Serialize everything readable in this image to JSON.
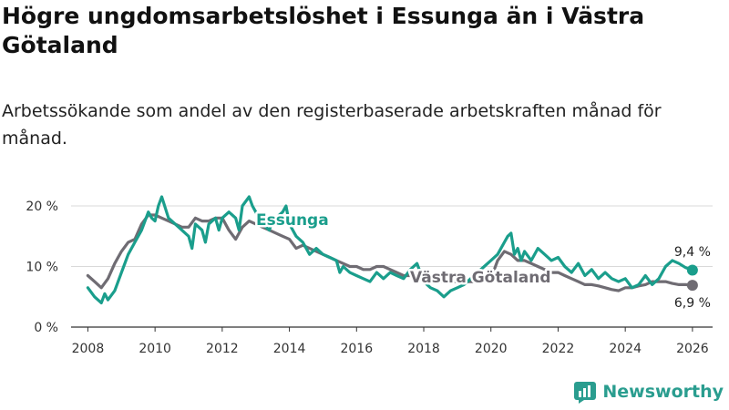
{
  "title": "Högre ungdomsarbetslöshet i Essunga än i Västra Götaland",
  "subtitle": "Arbetssökande som andel av den registerbaserade arbetskraften månad för månad.",
  "brand": {
    "name": "Newsworthy"
  },
  "colors": {
    "essunga": "#1a9e8c",
    "vg": "#6f6c73",
    "grid": "#d9d9d9",
    "axis": "#333333"
  },
  "chart_data": {
    "type": "line",
    "title": "Högre ungdomsarbetslöshet i Essunga än i Västra Götaland",
    "xlabel": "",
    "ylabel": "",
    "xlim": [
      2007.5,
      2026.6
    ],
    "ylim": [
      0,
      20
    ],
    "y_ticks": [
      0,
      10,
      20
    ],
    "y_tick_labels": [
      "0 %",
      "10 %",
      "20 %"
    ],
    "x_ticks": [
      2008,
      2010,
      2012,
      2014,
      2016,
      2018,
      2020,
      2022,
      2024,
      2026
    ],
    "x_tick_labels": [
      "2008",
      "2010",
      "2012",
      "2014",
      "2016",
      "2018",
      "2020",
      "2022",
      "2024",
      "2026"
    ],
    "series": [
      {
        "name": "Essunga",
        "end_label": "9,4 %",
        "x": [
          2008.0,
          2008.2,
          2008.4,
          2008.5,
          2008.6,
          2008.8,
          2009.0,
          2009.2,
          2009.4,
          2009.6,
          2009.8,
          2009.9,
          2010.0,
          2010.1,
          2010.2,
          2010.4,
          2010.6,
          2010.8,
          2011.0,
          2011.1,
          2011.2,
          2011.4,
          2011.5,
          2011.6,
          2011.8,
          2011.9,
          2012.0,
          2012.2,
          2012.4,
          2012.5,
          2012.6,
          2012.8,
          2012.9,
          2013.0,
          2013.2,
          2013.4,
          2013.5,
          2013.6,
          2013.8,
          2013.9,
          2014.0,
          2014.2,
          2014.4,
          2014.6,
          2014.8,
          2015.0,
          2015.2,
          2015.4,
          2015.5,
          2015.6,
          2015.8,
          2016.0,
          2016.2,
          2016.4,
          2016.6,
          2016.8,
          2017.0,
          2017.2,
          2017.4,
          2017.6,
          2017.8,
          2018.0,
          2018.2,
          2018.4,
          2018.6,
          2018.8,
          2019.0,
          2019.2,
          2019.4,
          2019.6,
          2019.8,
          2020.0,
          2020.2,
          2020.4,
          2020.5,
          2020.6,
          2020.7,
          2020.8,
          2020.9,
          2021.0,
          2021.2,
          2021.4,
          2021.6,
          2021.8,
          2022.0,
          2022.2,
          2022.4,
          2022.6,
          2022.8,
          2023.0,
          2023.2,
          2023.4,
          2023.6,
          2023.8,
          2024.0,
          2024.2,
          2024.4,
          2024.6,
          2024.8,
          2025.0,
          2025.2,
          2025.4,
          2025.6,
          2025.8,
          2026.0
        ],
        "values": [
          6.5,
          5.0,
          4.0,
          5.5,
          4.5,
          6.0,
          9.0,
          12.0,
          14.0,
          16.0,
          19.0,
          18.0,
          17.5,
          20.0,
          21.5,
          18.0,
          17.0,
          16.0,
          15.0,
          13.0,
          17.0,
          16.0,
          14.0,
          17.0,
          18.0,
          16.0,
          18.0,
          19.0,
          18.0,
          16.0,
          20.0,
          21.5,
          20.0,
          19.0,
          17.0,
          16.0,
          17.5,
          18.0,
          19.0,
          20.0,
          17.0,
          15.0,
          14.0,
          12.0,
          13.0,
          12.0,
          11.5,
          11.0,
          9.0,
          10.0,
          9.0,
          8.5,
          8.0,
          7.5,
          9.0,
          8.0,
          9.0,
          8.5,
          8.0,
          9.5,
          10.5,
          7.5,
          6.5,
          6.0,
          5.0,
          6.0,
          6.5,
          7.0,
          8.0,
          9.0,
          10.0,
          11.0,
          12.0,
          14.0,
          15.0,
          15.5,
          12.0,
          13.0,
          11.0,
          12.5,
          11.0,
          13.0,
          12.0,
          11.0,
          11.5,
          10.0,
          9.0,
          10.5,
          8.5,
          9.5,
          8.0,
          9.0,
          8.0,
          7.5,
          8.0,
          6.5,
          7.0,
          8.5,
          7.0,
          8.0,
          10.0,
          11.0,
          10.5,
          9.8,
          9.4
        ]
      },
      {
        "name": "Västra Götaland",
        "end_label": "6,9 %",
        "x": [
          2008.0,
          2008.2,
          2008.4,
          2008.6,
          2008.8,
          2009.0,
          2009.2,
          2009.4,
          2009.6,
          2009.8,
          2010.0,
          2010.2,
          2010.4,
          2010.6,
          2010.8,
          2011.0,
          2011.2,
          2011.4,
          2011.6,
          2011.8,
          2012.0,
          2012.2,
          2012.4,
          2012.6,
          2012.8,
          2013.0,
          2013.2,
          2013.4,
          2013.6,
          2013.8,
          2014.0,
          2014.2,
          2014.4,
          2014.6,
          2014.8,
          2015.0,
          2015.2,
          2015.4,
          2015.6,
          2015.8,
          2016.0,
          2016.2,
          2016.4,
          2016.6,
          2016.8,
          2017.0,
          2017.2,
          2017.4,
          2017.6,
          2017.8,
          2018.0,
          2018.2,
          2018.4,
          2018.6,
          2018.8,
          2019.0,
          2019.2,
          2019.4,
          2019.6,
          2019.8,
          2020.0,
          2020.2,
          2020.4,
          2020.6,
          2020.8,
          2021.0,
          2021.2,
          2021.4,
          2021.6,
          2021.8,
          2022.0,
          2022.2,
          2022.4,
          2022.6,
          2022.8,
          2023.0,
          2023.2,
          2023.4,
          2023.6,
          2023.8,
          2024.0,
          2024.2,
          2024.4,
          2024.6,
          2024.8,
          2025.0,
          2025.2,
          2025.4,
          2025.6,
          2025.8,
          2026.0
        ],
        "values": [
          8.5,
          7.5,
          6.5,
          8.0,
          10.5,
          12.5,
          14.0,
          14.5,
          17.0,
          18.5,
          18.5,
          18.0,
          17.5,
          17.0,
          16.5,
          16.5,
          18.0,
          17.5,
          17.5,
          18.0,
          18.0,
          16.0,
          14.5,
          16.5,
          17.5,
          17.0,
          16.5,
          16.0,
          15.5,
          15.0,
          14.5,
          13.0,
          13.5,
          13.0,
          12.5,
          12.0,
          11.5,
          11.0,
          10.5,
          10.0,
          10.0,
          9.5,
          9.5,
          10.0,
          10.0,
          9.5,
          9.0,
          8.5,
          8.5,
          8.5,
          8.5,
          8.0,
          7.5,
          7.5,
          7.5,
          7.5,
          7.5,
          7.5,
          7.5,
          7.5,
          8.0,
          11.0,
          12.5,
          12.0,
          11.0,
          11.0,
          10.5,
          10.0,
          9.5,
          9.0,
          9.0,
          8.5,
          8.0,
          7.5,
          7.0,
          7.0,
          6.8,
          6.5,
          6.2,
          6.0,
          6.5,
          6.5,
          6.8,
          7.0,
          7.5,
          7.5,
          7.5,
          7.2,
          7.0,
          7.0,
          6.9
        ]
      }
    ]
  }
}
